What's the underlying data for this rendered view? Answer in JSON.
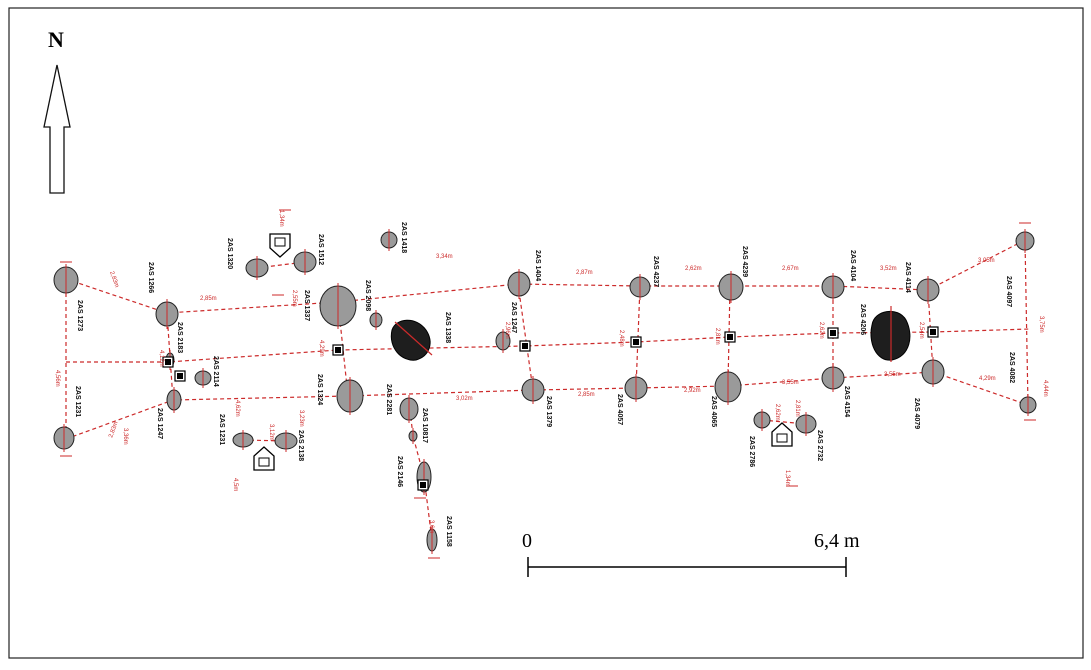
{
  "north": {
    "label": "N"
  },
  "scale": {
    "start": "0",
    "end": "6,4 m"
  },
  "colors": {
    "post": "#9a9a9a",
    "pit": "#1e1e1e",
    "line": "#cc2a2a",
    "outline": "#222222"
  },
  "posts": [
    {
      "label": "2AS 1273"
    },
    {
      "label": "2AS 1231"
    },
    {
      "label": "2AS 1266"
    },
    {
      "label": "2AS 2183"
    },
    {
      "label": "2AS 1247"
    },
    {
      "label": "2AS 2114"
    },
    {
      "label": "2AS 1320"
    },
    {
      "label": "2AS 1512"
    },
    {
      "label": "2AS 1231"
    },
    {
      "label": "2AS 2138"
    },
    {
      "label": "2AS 1337"
    },
    {
      "label": "2AS 1324"
    },
    {
      "label": "2AS 2098"
    },
    {
      "label": "2AS 1418"
    },
    {
      "label": "2AS 2281"
    },
    {
      "label": "2AS 10817"
    },
    {
      "label": "2AS 2146"
    },
    {
      "label": "2AS 1404"
    },
    {
      "label": "2AS 1247"
    },
    {
      "label": "2AS 1379"
    },
    {
      "label": "2AS 4237"
    },
    {
      "label": "2AS 4057"
    },
    {
      "label": "2AS 4239"
    },
    {
      "label": "2AS 4065"
    },
    {
      "label": "2AS 2786"
    },
    {
      "label": "2AS 2732"
    },
    {
      "label": "2AS 4104"
    },
    {
      "label": "2AS 4154"
    },
    {
      "label": "2AS 4114"
    },
    {
      "label": "2AS 4079"
    },
    {
      "label": "2AS 4097"
    },
    {
      "label": "2AS 4082"
    },
    {
      "label": "2AS 1158"
    },
    {
      "label": "2AS 1158"
    }
  ],
  "pits": [
    {
      "label": "2AS 1338"
    },
    {
      "label": "2AS 4206"
    }
  ],
  "markers": [
    {
      "label": "S"
    },
    {
      "label": "S"
    },
    {
      "label": "S"
    },
    {
      "label": "S"
    },
    {
      "label": "S"
    },
    {
      "label": "S"
    },
    {
      "label": "S"
    },
    {
      "label": "S"
    },
    {
      "label": "S"
    }
  ],
  "arrows": [
    {
      "label": "S"
    },
    {
      "label": "S"
    },
    {
      "label": "S"
    }
  ],
  "distances": [
    "2,83m",
    "2,83m",
    "4,56m",
    "4,12m",
    "3,36m",
    "2,85m",
    "2,55m",
    "3,12m",
    "3,23m",
    "3,34m",
    "3,02m",
    "2,87m",
    "2,85m",
    "2,62m",
    "2,92m",
    "2,67m",
    "3,55m",
    "3,52m",
    "3,55m",
    "3,05m",
    "4,29m",
    "4,29m",
    "2,96m",
    "2,48m",
    "2,81m",
    "2,62m",
    "2,54m",
    "3,75m",
    "4,44m",
    "1,34m",
    "4,5m",
    "3,6m",
    "1,34m",
    "2,62m",
    "2,81m",
    "4,62m"
  ]
}
